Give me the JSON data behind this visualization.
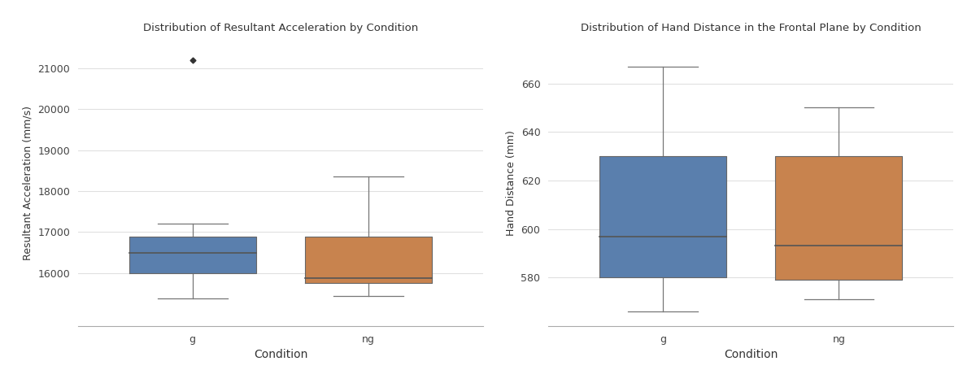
{
  "left_title": "Distribution of Resultant Acceleration by Condition",
  "right_title": "Distribution of Hand Distance in the Frontal Plane by Condition",
  "left_ylabel": "Resultant Acceleration (mm/s)",
  "right_ylabel": "Hand Distance (mm)",
  "xlabel": "Condition",
  "categories": [
    "g",
    "ng"
  ],
  "colors": [
    "#5a7fad",
    "#c8834e"
  ],
  "median_color": "#555555",
  "whisker_color": "#777777",
  "cap_color": "#777777",
  "box_edge_color": "#666666",
  "background_color": "#ffffff",
  "grid_color": "#e0e0e0",
  "ra": {
    "g": {
      "whisker_low": 15370,
      "q1": 16000,
      "median": 16480,
      "q3": 16890,
      "whisker_high": 17200,
      "outliers": [
        21200
      ]
    },
    "ng": {
      "whisker_low": 15440,
      "q1": 15760,
      "median": 15870,
      "q3": 16890,
      "whisker_high": 18350,
      "outliers": []
    }
  },
  "hd": {
    "g": {
      "whisker_low": 566,
      "q1": 580,
      "median": 597,
      "q3": 630,
      "whisker_high": 667,
      "outliers": []
    },
    "ng": {
      "whisker_low": 571,
      "q1": 579,
      "median": 593,
      "q3": 630,
      "whisker_high": 650,
      "outliers": []
    }
  },
  "ra_ylim": [
    14700,
    21700
  ],
  "ra_yticks": [
    16000,
    17000,
    18000,
    19000,
    20000,
    21000
  ],
  "hd_ylim": [
    560,
    678
  ],
  "hd_yticks": [
    580,
    600,
    620,
    640,
    660
  ]
}
